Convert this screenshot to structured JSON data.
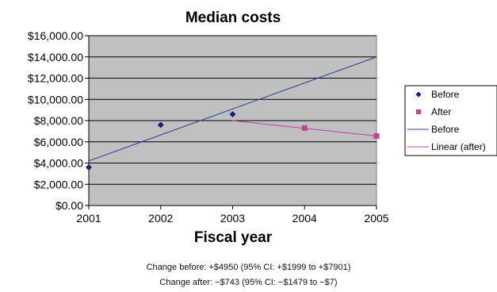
{
  "chart_data": {
    "type": "scatter",
    "title": "Median costs",
    "xlabel": "Fiscal year",
    "ylabel": "",
    "x_categories": [
      "2001",
      "2002",
      "2003",
      "2004",
      "2005"
    ],
    "ylim": [
      0,
      16000
    ],
    "y_ticks": [
      0,
      2000,
      4000,
      6000,
      8000,
      10000,
      12000,
      14000,
      16000
    ],
    "y_tick_labels": [
      "$0.00",
      "$2,000.00",
      "$4,000.00",
      "$6,000.00",
      "$8,000.00",
      "$10,000.00",
      "$12,000.00",
      "$14,000.00",
      "$16,000.00"
    ],
    "grid": true,
    "legend_position": "right",
    "series": [
      {
        "name": "Before",
        "kind": "markers",
        "marker": "diamond",
        "color": "#1f1f7a",
        "x": [
          "2001",
          "2002",
          "2003"
        ],
        "y": [
          3600,
          7600,
          8600
        ]
      },
      {
        "name": "After",
        "kind": "markers",
        "marker": "square",
        "color": "#c040a0",
        "x": [
          "2004",
          "2005"
        ],
        "y": [
          7300,
          6550
        ]
      },
      {
        "name": "Before",
        "kind": "line",
        "color": "#2a3fa0",
        "x": [
          "2001",
          "2005"
        ],
        "y": [
          4200,
          14000
        ]
      },
      {
        "name": "Linear (after)",
        "kind": "line",
        "color": "#c040a0",
        "x": [
          "2003",
          "2005"
        ],
        "y": [
          8000,
          6550
        ]
      }
    ]
  },
  "notes": {
    "change_before": "Change before: +$4950 (95% CI: +$1999 to +$7901)",
    "change_after": "Change after: −$743 (95% CI: −$1479 to −$7)"
  }
}
